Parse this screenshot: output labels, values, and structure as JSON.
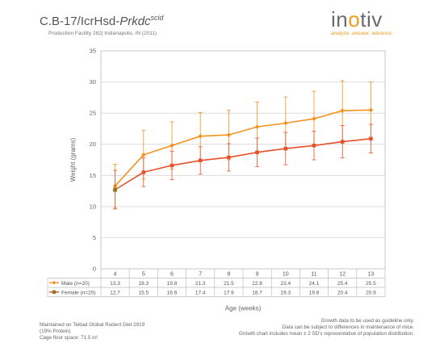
{
  "header": {
    "title_main": "C.B-17/IcrHsd-",
    "title_italic": "Prkdc",
    "title_sup": "scid",
    "subtitle": "Production Facility 282| Indianapolis, IN (2011)"
  },
  "logo": {
    "brand_prefix": "in",
    "brand_accent": "o",
    "brand_suffix": "tiv",
    "tagline": "analyze. answer. advance."
  },
  "chart_data": {
    "type": "line",
    "xlabel": "Age (weeks)",
    "ylabel": "Weight (grams)",
    "categories": [
      "4",
      "5",
      "6",
      "7",
      "8",
      "9",
      "10",
      "11",
      "12",
      "13"
    ],
    "ylim": [
      0,
      35
    ],
    "yticks": [
      "0",
      "5",
      "10",
      "15",
      "20",
      "25",
      "30",
      "35"
    ],
    "grid": true,
    "legend_placement": "table-below",
    "series": [
      {
        "name": "Male (n=20)",
        "color": "#f5921e",
        "marker": "diamond",
        "values": [
          13.3,
          18.3,
          19.8,
          21.3,
          21.5,
          22.8,
          23.4,
          24.1,
          25.4,
          25.5
        ],
        "value_labels": [
          "13.3",
          "18.3",
          "19.8",
          "21.3",
          "21.5",
          "22.8",
          "23.4",
          "24.1",
          "25.4",
          "25.5"
        ],
        "error": [
          3.5,
          3.9,
          3.8,
          3.8,
          4.0,
          4.0,
          4.2,
          4.4,
          4.8,
          4.5
        ]
      },
      {
        "name": "Female (n=20)",
        "color": "#e8502a",
        "first_marker_color": "#8a7a1a",
        "marker": "square",
        "values": [
          12.7,
          15.5,
          16.6,
          17.4,
          17.9,
          18.7,
          19.3,
          19.8,
          20.4,
          20.9
        ],
        "value_labels": [
          "12.7",
          "15.5",
          "16.6",
          "17.4",
          "17.9",
          "18.7",
          "19.3",
          "19.8",
          "20.4",
          "20.9"
        ],
        "error": [
          3.1,
          2.3,
          2.3,
          2.2,
          2.2,
          2.3,
          2.6,
          2.3,
          2.6,
          2.3
        ]
      }
    ]
  },
  "footer": {
    "left_lines": [
      "Maintained on Teklad Global Rodent Diet 2919",
      "(19% Protein)",
      "Cage floor space: 71.5 in²"
    ],
    "right_lines": [
      "Growth data to be used as guideline only.",
      "Data can be subject to differences in maintenance of mice.",
      "Growth chart includes mean ± 2 SD's representative of population distribution."
    ]
  }
}
